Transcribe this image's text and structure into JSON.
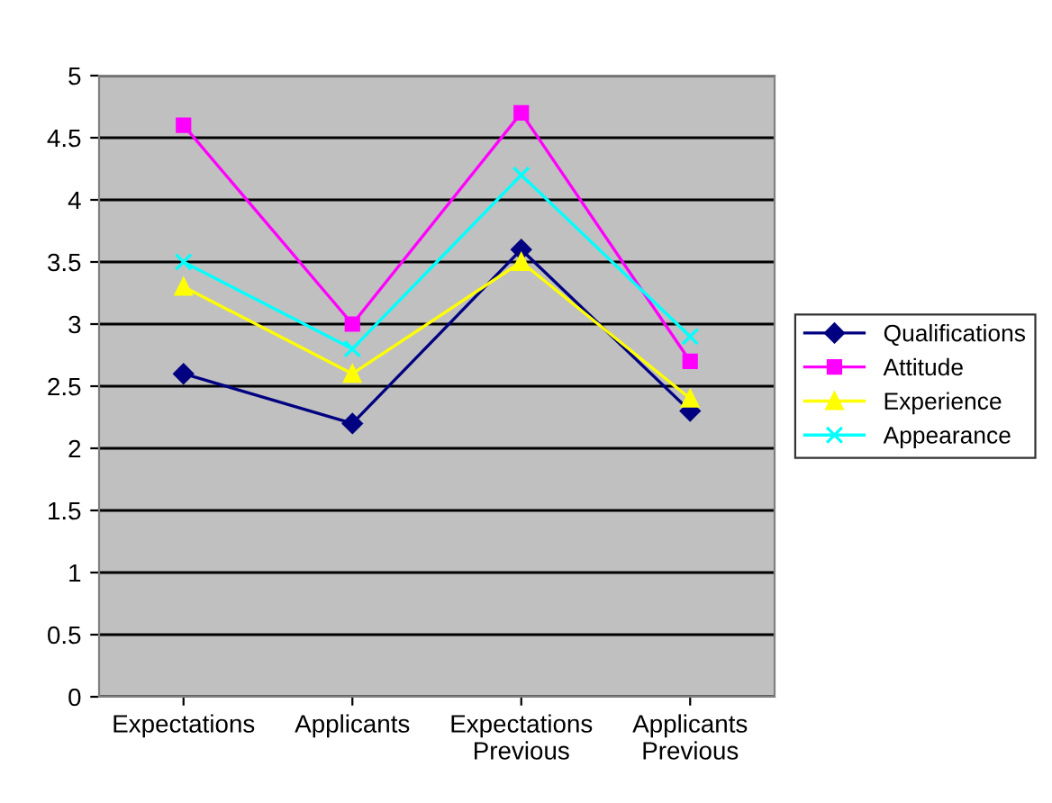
{
  "chart_data": {
    "type": "line",
    "categories": [
      "Expectations",
      "Applicants",
      "Expectations\nPrevious",
      "Applicants\nPrevious"
    ],
    "series": [
      {
        "name": "Qualifications",
        "color": "#000080",
        "marker": "diamond",
        "values": [
          2.6,
          2.2,
          3.6,
          2.3
        ]
      },
      {
        "name": "Attitude",
        "color": "#ff00ff",
        "marker": "square",
        "values": [
          4.6,
          3.0,
          4.7,
          2.7
        ]
      },
      {
        "name": "Experience",
        "color": "#ffff00",
        "marker": "triangle",
        "values": [
          3.3,
          2.6,
          3.5,
          2.4
        ]
      },
      {
        "name": "Appearance",
        "color": "#00ffff",
        "marker": "cross",
        "values": [
          3.5,
          2.8,
          4.2,
          2.9
        ]
      }
    ],
    "ylim": [
      0,
      5
    ],
    "yticks": [
      0,
      0.5,
      1,
      1.5,
      2,
      2.5,
      3,
      3.5,
      4,
      4.5,
      5
    ],
    "grid": "y",
    "legend": "right"
  }
}
